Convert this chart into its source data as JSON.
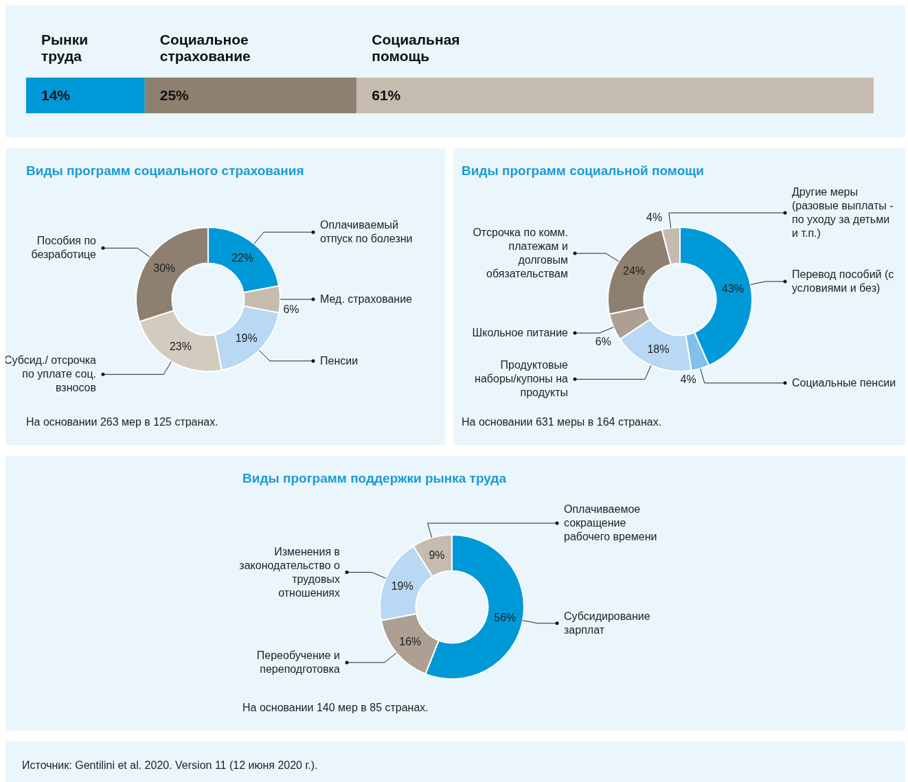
{
  "chart_data": [
    {
      "type": "bar",
      "orientation": "horizontal",
      "stacked": true,
      "categories": [
        null
      ],
      "series": [
        {
          "name": "Рынки труда",
          "color": "#0099d8",
          "values": [
            14
          ],
          "value_labels": [
            "14%"
          ]
        },
        {
          "name": "Социальное страхование",
          "color": "#8d8070",
          "values": [
            25
          ],
          "value_labels": [
            "25%"
          ]
        },
        {
          "name": "Социальная помощь",
          "color": "#c6bbaf",
          "values": [
            61
          ],
          "value_labels": [
            "61%"
          ]
        }
      ]
    },
    {
      "type": "donut",
      "title": "Виды программ социального страхования",
      "categories": [
        "Оплачиваемый отпуск по болезни",
        "Мед. страхование",
        "Пенсии",
        "Субсид./ отсрочка по уплате соц. взносов",
        "Пособия по безработице"
      ],
      "values": [
        22,
        6,
        19,
        23,
        30
      ],
      "value_labels": [
        "22%",
        "6%",
        "19%",
        "23%",
        "30%"
      ],
      "colors": [
        "#0099d8",
        "#c6bbaf",
        "#b8d8f3",
        "#d3cac0",
        "#8d8070"
      ],
      "annotations": [
        "На основании 263 мер в 125 странах."
      ]
    },
    {
      "type": "donut",
      "title": "Виды программ социальной помощи",
      "categories": [
        "Перевод пособий (с условиями и без)",
        "Социальные пенсии",
        "Продуктовые наборы/купоны на продукты",
        "Школьное питание",
        "Отсрочка по комм. платежам и долговым обязательствам",
        "Другие меры (разовые выплаты - по уходу за детьми и т.п.)"
      ],
      "values": [
        43,
        4,
        18,
        6,
        24,
        4
      ],
      "value_labels": [
        "43%",
        "4%",
        "18%",
        "6%",
        "24%",
        "4%"
      ],
      "colors": [
        "#0099d8",
        "#82c0ea",
        "#b8d8f3",
        "#ada092",
        "#8d8070",
        "#c6bbaf"
      ],
      "annotations": [
        "На основании 631 меры в 164 странах."
      ]
    },
    {
      "type": "donut",
      "title": "Виды программ поддержки рынка труда",
      "categories": [
        "Субсидирование зарплат",
        "Переобучение и переподготовка",
        "Изменения в законодательство о трудовых отношениях",
        "Оплачиваемое сокращение рабочего времени"
      ],
      "values": [
        56,
        16,
        19,
        9
      ],
      "value_labels": [
        "56%",
        "16%",
        "19%",
        "9%"
      ],
      "colors": [
        "#0099d8",
        "#ada092",
        "#b8d8f3",
        "#c6bbaf"
      ],
      "annotations": [
        "На основании 140 мер в 85 странах.",
        "Источник: Gentilini et al. 2020. Version 11 (12 июня 2020 г.)."
      ]
    }
  ]
}
